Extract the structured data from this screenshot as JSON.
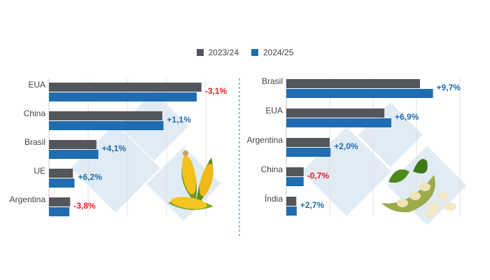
{
  "legend": [
    {
      "label": "2023/24",
      "color": "#53565a"
    },
    {
      "label": "2024/25",
      "color": "#1f6db0"
    }
  ],
  "colors": {
    "positive": "#1f6db0",
    "negative": "#ee1c1c"
  },
  "chart_data": [
    {
      "type": "bar",
      "orientation": "horizontal",
      "categories": [
        "EUA",
        "China",
        "Brasil",
        "UE",
        "Argentina"
      ],
      "series": [
        {
          "name": "2023/24",
          "values": [
            389,
            289,
            121,
            61,
            54
          ]
        },
        {
          "name": "2024/25",
          "values": [
            377,
            292,
            126,
            65,
            52
          ]
        }
      ],
      "data_labels": [
        "-3,1%",
        "+1,1%",
        "+4,1%",
        "+6,2%",
        "-3,8%"
      ],
      "xlim": [
        0,
        400
      ],
      "grid": true,
      "illustration": "corn-icon"
    },
    {
      "type": "bar",
      "orientation": "horizontal",
      "categories": [
        "Brasil",
        "EUA",
        "Argentina",
        "China",
        "Índia"
      ],
      "series": [
        {
          "name": "2023/24",
          "values": [
            154,
            113,
            50,
            20,
            11.5
          ]
        },
        {
          "name": "2024/25",
          "values": [
            169,
            121,
            51,
            20,
            12
          ]
        }
      ],
      "data_labels": [
        "+9,7%",
        "+6,9%",
        "+2,0%",
        "-0,7%",
        "+2,7%"
      ],
      "xlim": [
        0,
        200
      ],
      "grid": true,
      "illustration": "soybean-icon"
    }
  ]
}
